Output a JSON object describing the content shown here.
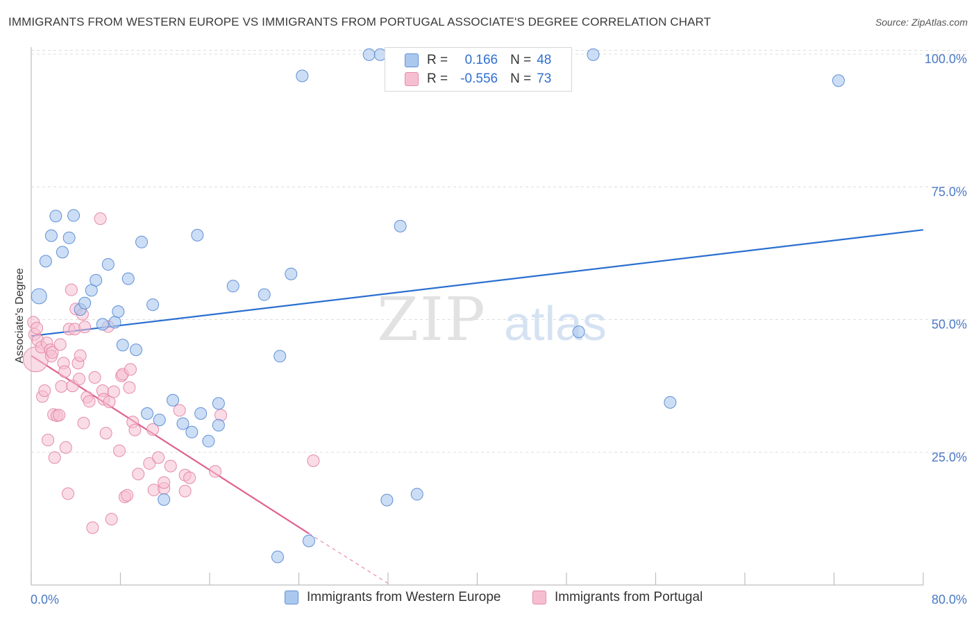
{
  "header": {
    "title": "IMMIGRANTS FROM WESTERN EUROPE VS IMMIGRANTS FROM PORTUGAL ASSOCIATE'S DEGREE CORRELATION CHART",
    "source": "Source: ZipAtlas.com"
  },
  "watermark": {
    "zip": "ZIP",
    "atlas": "atlas"
  },
  "legend": {
    "r_label": "R =",
    "n_label": "N =",
    "rows": [
      {
        "r": "0.166",
        "n": "48"
      },
      {
        "r": "-0.556",
        "n": "73"
      }
    ]
  },
  "colors": {
    "blue_fill": "#aac8ee",
    "blue_stroke": "#5f8fd6",
    "blue_line": "#2a6fd0",
    "pink_fill": "#f6bfd1",
    "pink_stroke": "#e58aa9",
    "pink_line": "#e0608f",
    "tick_text": "#4a78c4",
    "grid": "#dcdcdc"
  },
  "chart_data": {
    "type": "scatter",
    "title": "IMMIGRANTS FROM WESTERN EUROPE VS IMMIGRANTS FROM PORTUGAL ASSOCIATE'S DEGREE CORRELATION CHART",
    "xlabel": "",
    "ylabel": "Associate's Degree",
    "xlim": [
      0,
      80
    ],
    "ylim": [
      0,
      102
    ],
    "x_tick_labels": [
      "0.0%",
      "80.0%"
    ],
    "y_ticks": [
      25,
      50,
      75,
      100
    ],
    "y_tick_labels": [
      "25.0%",
      "50.0%",
      "75.0%",
      "100.0%"
    ],
    "grid": true,
    "legend_position": "top-center",
    "series": [
      {
        "name": "Immigrants from Western Europe",
        "color": "blue",
        "trend": {
          "x": [
            0,
            80
          ],
          "y": [
            46.9,
            66.9
          ]
        },
        "points": [
          {
            "x": 0.7,
            "y": 54.4,
            "big": true
          },
          {
            "x": 1.3,
            "y": 61.0
          },
          {
            "x": 1.8,
            "y": 65.8
          },
          {
            "x": 2.2,
            "y": 69.5
          },
          {
            "x": 2.8,
            "y": 62.7
          },
          {
            "x": 3.4,
            "y": 65.4
          },
          {
            "x": 3.8,
            "y": 69.6
          },
          {
            "x": 4.4,
            "y": 51.9
          },
          {
            "x": 4.8,
            "y": 53.1
          },
          {
            "x": 5.4,
            "y": 55.5
          },
          {
            "x": 5.8,
            "y": 57.4
          },
          {
            "x": 6.4,
            "y": 49.1
          },
          {
            "x": 6.9,
            "y": 60.4
          },
          {
            "x": 7.5,
            "y": 49.5
          },
          {
            "x": 7.8,
            "y": 51.5
          },
          {
            "x": 8.2,
            "y": 45.2
          },
          {
            "x": 8.7,
            "y": 57.7
          },
          {
            "x": 9.4,
            "y": 44.3
          },
          {
            "x": 9.9,
            "y": 64.6
          },
          {
            "x": 10.4,
            "y": 32.3
          },
          {
            "x": 10.9,
            "y": 52.8
          },
          {
            "x": 11.5,
            "y": 31.1
          },
          {
            "x": 11.9,
            "y": 16.1
          },
          {
            "x": 12.7,
            "y": 34.8
          },
          {
            "x": 13.6,
            "y": 30.4
          },
          {
            "x": 14.4,
            "y": 28.8
          },
          {
            "x": 14.9,
            "y": 65.9
          },
          {
            "x": 15.2,
            "y": 32.3
          },
          {
            "x": 15.9,
            "y": 27.1
          },
          {
            "x": 16.8,
            "y": 34.2
          },
          {
            "x": 16.8,
            "y": 30.1
          },
          {
            "x": 18.1,
            "y": 56.3
          },
          {
            "x": 20.9,
            "y": 54.7
          },
          {
            "x": 22.1,
            "y": 5.3
          },
          {
            "x": 22.3,
            "y": 43.1
          },
          {
            "x": 23.3,
            "y": 58.6
          },
          {
            "x": 24.3,
            "y": 95.9
          },
          {
            "x": 24.9,
            "y": 8.3
          },
          {
            "x": 30.3,
            "y": 99.9
          },
          {
            "x": 31.3,
            "y": 99.9
          },
          {
            "x": 31.9,
            "y": 16.0
          },
          {
            "x": 33.1,
            "y": 67.6
          },
          {
            "x": 34.6,
            "y": 17.1
          },
          {
            "x": 49.1,
            "y": 47.7
          },
          {
            "x": 50.4,
            "y": 99.9
          },
          {
            "x": 57.3,
            "y": 34.4
          },
          {
            "x": 72.4,
            "y": 95.0
          }
        ]
      },
      {
        "name": "Immigrants from Portugal",
        "color": "pink",
        "trend": {
          "x": [
            0,
            24.9
          ],
          "y": [
            43.2,
            9.7
          ]
        },
        "trend_dashed": {
          "x": [
            24.9,
            32.0
          ],
          "y": [
            9.7,
            0.3
          ]
        },
        "points": [
          {
            "x": 0.4,
            "y": 42.5,
            "big": true
          },
          {
            "x": 0.2,
            "y": 49.5
          },
          {
            "x": 0.3,
            "y": 47.2
          },
          {
            "x": 0.5,
            "y": 48.4
          },
          {
            "x": 0.6,
            "y": 46.1
          },
          {
            "x": 0.9,
            "y": 44.8
          },
          {
            "x": 1.0,
            "y": 35.5
          },
          {
            "x": 1.2,
            "y": 36.6
          },
          {
            "x": 1.4,
            "y": 45.6
          },
          {
            "x": 1.5,
            "y": 27.3
          },
          {
            "x": 1.7,
            "y": 44.3
          },
          {
            "x": 1.8,
            "y": 43.1
          },
          {
            "x": 1.9,
            "y": 43.8
          },
          {
            "x": 2.0,
            "y": 32.1
          },
          {
            "x": 2.1,
            "y": 24.0
          },
          {
            "x": 2.3,
            "y": 31.9
          },
          {
            "x": 2.5,
            "y": 32.0
          },
          {
            "x": 2.6,
            "y": 45.3
          },
          {
            "x": 2.7,
            "y": 37.4
          },
          {
            "x": 2.9,
            "y": 41.8
          },
          {
            "x": 3.0,
            "y": 40.2
          },
          {
            "x": 3.1,
            "y": 25.9
          },
          {
            "x": 3.3,
            "y": 17.2
          },
          {
            "x": 3.4,
            "y": 48.2
          },
          {
            "x": 3.6,
            "y": 55.6
          },
          {
            "x": 3.7,
            "y": 37.5
          },
          {
            "x": 3.9,
            "y": 48.2
          },
          {
            "x": 4.0,
            "y": 52.0
          },
          {
            "x": 4.2,
            "y": 41.8
          },
          {
            "x": 4.3,
            "y": 38.8
          },
          {
            "x": 4.4,
            "y": 43.2
          },
          {
            "x": 4.6,
            "y": 51.0
          },
          {
            "x": 4.7,
            "y": 30.5
          },
          {
            "x": 4.8,
            "y": 48.6
          },
          {
            "x": 5.0,
            "y": 35.4
          },
          {
            "x": 5.2,
            "y": 34.6
          },
          {
            "x": 5.5,
            "y": 10.8
          },
          {
            "x": 5.7,
            "y": 39.1
          },
          {
            "x": 6.2,
            "y": 69.0
          },
          {
            "x": 6.4,
            "y": 36.6
          },
          {
            "x": 6.5,
            "y": 35.0
          },
          {
            "x": 6.7,
            "y": 28.6
          },
          {
            "x": 6.9,
            "y": 48.7
          },
          {
            "x": 7.0,
            "y": 34.5
          },
          {
            "x": 7.2,
            "y": 12.4
          },
          {
            "x": 7.4,
            "y": 36.4
          },
          {
            "x": 7.9,
            "y": 25.3
          },
          {
            "x": 8.1,
            "y": 39.4
          },
          {
            "x": 8.2,
            "y": 39.7
          },
          {
            "x": 8.4,
            "y": 16.6
          },
          {
            "x": 8.6,
            "y": 16.9
          },
          {
            "x": 8.8,
            "y": 37.2
          },
          {
            "x": 8.9,
            "y": 40.6
          },
          {
            "x": 9.1,
            "y": 30.7
          },
          {
            "x": 9.3,
            "y": 29.2
          },
          {
            "x": 9.6,
            "y": 20.9
          },
          {
            "x": 10.6,
            "y": 22.9
          },
          {
            "x": 10.9,
            "y": 29.3
          },
          {
            "x": 11.0,
            "y": 17.9
          },
          {
            "x": 11.4,
            "y": 24.0
          },
          {
            "x": 11.9,
            "y": 18.2
          },
          {
            "x": 11.9,
            "y": 19.3
          },
          {
            "x": 12.5,
            "y": 22.4
          },
          {
            "x": 13.3,
            "y": 32.9
          },
          {
            "x": 13.8,
            "y": 20.7
          },
          {
            "x": 13.8,
            "y": 17.7
          },
          {
            "x": 14.2,
            "y": 20.2
          },
          {
            "x": 16.5,
            "y": 21.4
          },
          {
            "x": 17.0,
            "y": 32.0
          },
          {
            "x": 25.3,
            "y": 23.4
          }
        ]
      }
    ]
  },
  "bottom_legend": {
    "items": [
      {
        "label": "Immigrants from Western Europe"
      },
      {
        "label": "Immigrants from Portugal"
      }
    ]
  }
}
